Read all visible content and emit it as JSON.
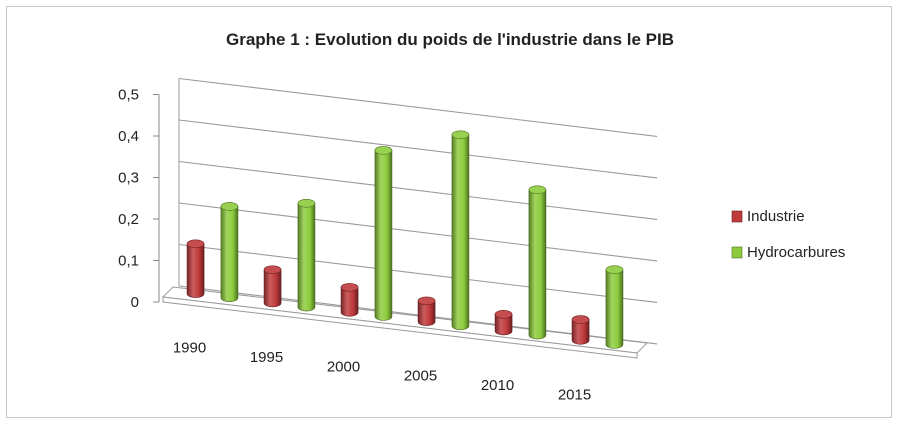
{
  "chart_data": {
    "type": "bar",
    "title": "Graphe 1 : Evolution du poids de l'industrie dans le PIB",
    "categories": [
      "1990",
      "1995",
      "2000",
      "2005",
      "2010",
      "2015"
    ],
    "series": [
      {
        "name": "Industrie",
        "values": [
          0.12,
          0.08,
          0.06,
          0.05,
          0.04,
          0.05
        ],
        "color": "#c0393b"
      },
      {
        "name": "Hydrocarbures",
        "values": [
          0.22,
          0.25,
          0.4,
          0.46,
          0.35,
          0.18
        ],
        "color": "#8ccc3c"
      }
    ],
    "yticks": [
      "0",
      "0,1",
      "0,2",
      "0,3",
      "0,4",
      "0,5"
    ],
    "ylim": [
      0,
      0.5
    ],
    "xlabel": "",
    "ylabel": "",
    "grid": true,
    "legend": "right"
  }
}
